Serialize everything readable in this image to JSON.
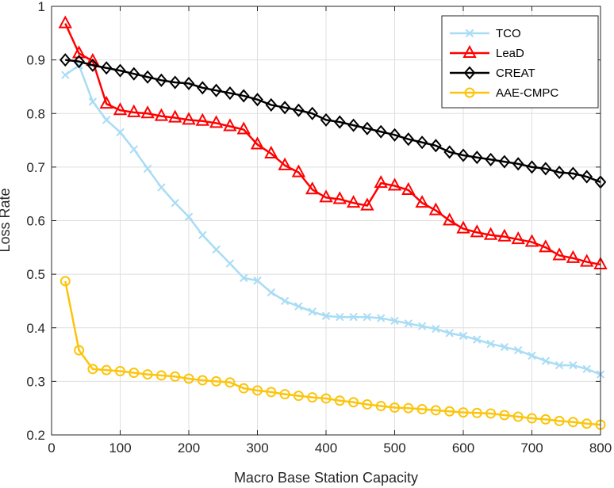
{
  "chart_data": {
    "type": "line",
    "xlabel": "Macro Base Station Capacity",
    "ylabel": "Loss Rate",
    "xlim": [
      0,
      800
    ],
    "ylim": [
      0.2,
      1
    ],
    "xticks": [
      0,
      100,
      200,
      300,
      400,
      500,
      600,
      700,
      800
    ],
    "yticks": [
      0.2,
      0.3,
      0.4,
      0.5,
      0.6,
      0.7,
      0.8,
      0.9,
      1
    ],
    "xtick_labels": [
      "0",
      "100",
      "200",
      "300",
      "400",
      "500",
      "600",
      "700",
      "800"
    ],
    "ytick_labels": [
      "0.2",
      "0.3",
      "0.4",
      "0.5",
      "0.6",
      "0.7",
      "0.8",
      "0.9",
      "1"
    ],
    "grid": true,
    "legend_position": "top-right",
    "x": [
      20,
      40,
      60,
      80,
      100,
      120,
      140,
      160,
      180,
      200,
      220,
      240,
      260,
      280,
      300,
      320,
      340,
      360,
      380,
      400,
      420,
      440,
      460,
      480,
      500,
      520,
      540,
      560,
      580,
      600,
      620,
      640,
      660,
      680,
      700,
      720,
      740,
      760,
      780,
      800
    ],
    "series": [
      {
        "name": "TCO",
        "color": "#a9dcf5",
        "marker": "x",
        "values": [
          0.872,
          0.89,
          0.822,
          0.788,
          0.765,
          0.733,
          0.697,
          0.662,
          0.633,
          0.607,
          0.573,
          0.546,
          0.52,
          0.493,
          0.488,
          0.466,
          0.45,
          0.44,
          0.43,
          0.422,
          0.42,
          0.42,
          0.42,
          0.418,
          0.413,
          0.408,
          0.403,
          0.398,
          0.39,
          0.385,
          0.378,
          0.37,
          0.364,
          0.358,
          0.348,
          0.338,
          0.33,
          0.33,
          0.323,
          0.313
        ]
      },
      {
        "name": "LeaD",
        "color": "#ff0000",
        "marker": "triangle",
        "values": [
          0.968,
          0.912,
          0.898,
          0.818,
          0.806,
          0.802,
          0.8,
          0.795,
          0.792,
          0.788,
          0.786,
          0.782,
          0.776,
          0.77,
          0.742,
          0.725,
          0.703,
          0.69,
          0.658,
          0.643,
          0.64,
          0.633,
          0.628,
          0.67,
          0.665,
          0.657,
          0.633,
          0.619,
          0.6,
          0.585,
          0.578,
          0.573,
          0.57,
          0.565,
          0.56,
          0.55,
          0.535,
          0.53,
          0.523,
          0.518
        ]
      },
      {
        "name": "CREAT",
        "color": "#000000",
        "marker": "diamond",
        "values": [
          0.9,
          0.897,
          0.89,
          0.885,
          0.88,
          0.874,
          0.868,
          0.862,
          0.858,
          0.856,
          0.848,
          0.843,
          0.838,
          0.833,
          0.826,
          0.816,
          0.811,
          0.806,
          0.8,
          0.788,
          0.784,
          0.778,
          0.772,
          0.766,
          0.76,
          0.752,
          0.746,
          0.74,
          0.728,
          0.722,
          0.718,
          0.714,
          0.71,
          0.706,
          0.7,
          0.697,
          0.69,
          0.688,
          0.682,
          0.672
        ]
      },
      {
        "name": "AAE-CMPC",
        "color": "#fcc40b",
        "marker": "circle",
        "values": [
          0.487,
          0.358,
          0.323,
          0.321,
          0.319,
          0.316,
          0.313,
          0.311,
          0.309,
          0.305,
          0.302,
          0.3,
          0.298,
          0.287,
          0.283,
          0.28,
          0.276,
          0.273,
          0.27,
          0.268,
          0.264,
          0.261,
          0.257,
          0.254,
          0.251,
          0.25,
          0.248,
          0.246,
          0.244,
          0.242,
          0.241,
          0.24,
          0.237,
          0.234,
          0.231,
          0.229,
          0.226,
          0.224,
          0.221,
          0.219
        ]
      }
    ]
  }
}
